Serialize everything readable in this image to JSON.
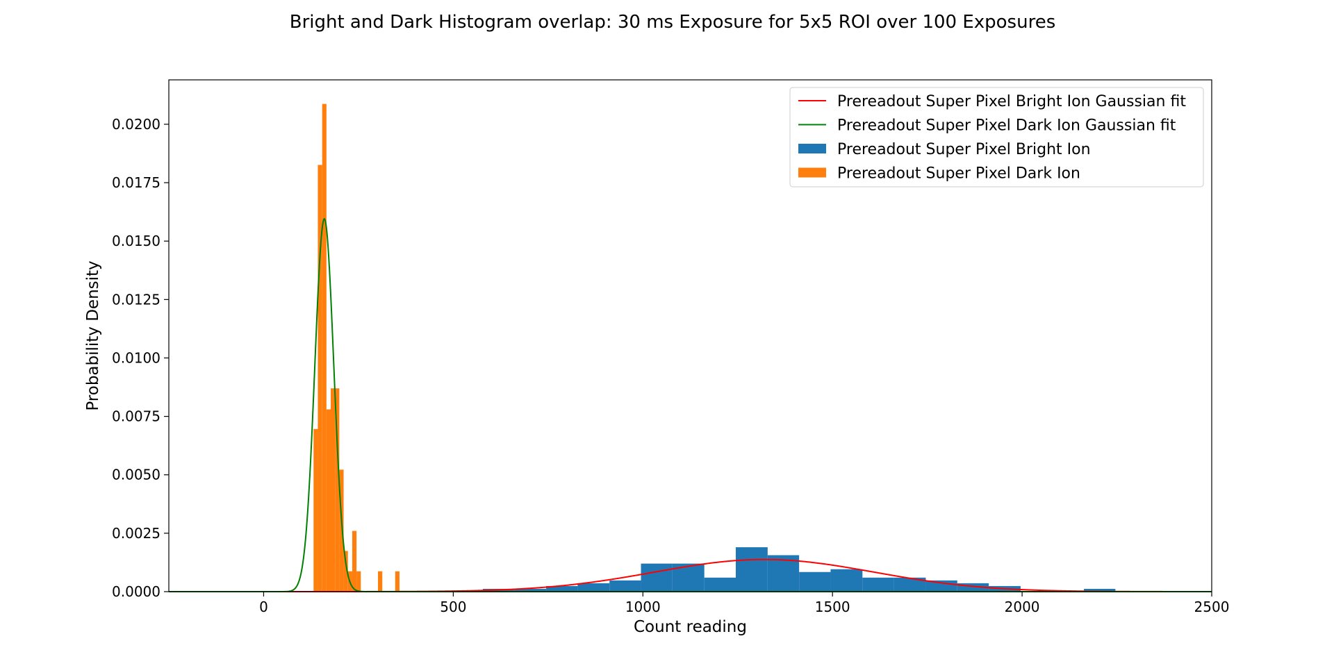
{
  "chart_data": {
    "type": "bar",
    "title": "Bright and Dark Histogram overlap: 30 ms Exposure for 5x5 ROI over 100 Exposures",
    "xlabel": "Count reading",
    "ylabel": "Probability Density",
    "xlim": [
      -250,
      2500
    ],
    "ylim": [
      0,
      0.0219
    ],
    "xticks": [
      0,
      500,
      1000,
      1500,
      2000,
      2500
    ],
    "yticks": [
      0.0,
      0.0025,
      0.005,
      0.0075,
      0.01,
      0.0125,
      0.015,
      0.0175,
      0.02
    ],
    "ytick_labels": [
      "0.0000",
      "0.0025",
      "0.0050",
      "0.0075",
      "0.0100",
      "0.0125",
      "0.0150",
      "0.0175",
      "0.0200"
    ],
    "legend_position": "top-right",
    "grid": false,
    "histograms": [
      {
        "name": "Prereadout Super Pixel Bright Ion",
        "color": "#1f77b4",
        "bin_edges": [
          578,
          661,
          745,
          828,
          912,
          995,
          1078,
          1162,
          1245,
          1329,
          1412,
          1495,
          1579,
          1662,
          1746,
          1829,
          1912,
          1996,
          2079,
          2163,
          2246
        ],
        "density": [
          0.00012,
          0.00012,
          0.00024,
          0.00036,
          0.00048,
          0.0012,
          0.0012,
          0.0006,
          0.0019,
          0.00156,
          0.00084,
          0.00096,
          0.0006,
          0.0006,
          0.00048,
          0.00036,
          0.00024,
          0.0,
          0.0,
          0.00012
        ]
      },
      {
        "name": "Prereadout Super Pixel Dark Ion",
        "color": "#ff7f0e",
        "bin_edges": [
          131.6,
          142.9,
          154.3,
          165.6,
          176.9,
          188.3,
          199.6,
          210.9,
          222.2,
          233.6,
          244.9,
          256.2,
          267.6,
          278.9,
          290.2,
          301.5,
          312.9,
          324.2,
          335.5,
          346.9,
          358.2
        ],
        "density": [
          0.00696,
          0.01826,
          0.02087,
          0.0078,
          0.0087,
          0.0087,
          0.00522,
          0.00174,
          0.00087,
          0.0026,
          0.00087,
          0.0,
          0.0,
          0.0,
          0.0,
          0.00087,
          0.0,
          0.0,
          0.0,
          0.00087
        ]
      }
    ],
    "fits": [
      {
        "name": "Prereadout Super Pixel Bright Ion Gaussian fit",
        "color": "#ff0000",
        "mean": 1320,
        "sigma": 290
      },
      {
        "name": "Prereadout Super Pixel Dark Ion Gaussian fit",
        "color": "#008000",
        "mean": 160,
        "sigma": 25
      }
    ],
    "legend": [
      {
        "label": "Prereadout Super Pixel Bright Ion Gaussian fit",
        "kind": "line",
        "color": "#ff0000"
      },
      {
        "label": "Prereadout Super Pixel Dark Ion Gaussian fit",
        "kind": "line",
        "color": "#008000"
      },
      {
        "label": "Prereadout Super Pixel Bright Ion",
        "kind": "patch",
        "color": "#1f77b4"
      },
      {
        "label": "Prereadout Super Pixel Dark Ion",
        "kind": "patch",
        "color": "#ff7f0e"
      }
    ]
  }
}
